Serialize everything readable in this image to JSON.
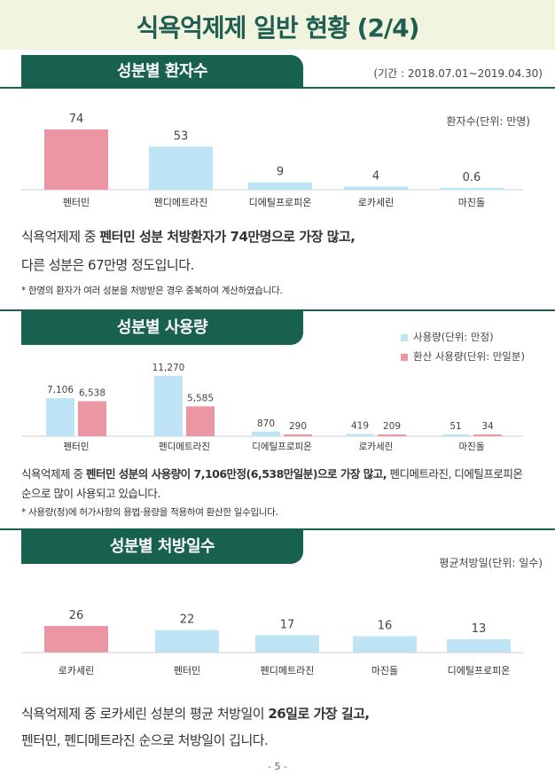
{
  "page": {
    "title": "식욕억제제 일반 현황 (2/4)",
    "period": "(기간 : 2018.07.01~2019.04.30)",
    "page_number": "- 5 -",
    "colors": {
      "brand": "#18614f",
      "highlight_bar": "#eb97a3",
      "normal_bar": "#bfe4f6",
      "top_band": "#f1f4df"
    }
  },
  "section1": {
    "heading": "성분별 환자수",
    "unit_label": "환자수(단위: 만명)",
    "text_line1_a": "식욕억제제 중 ",
    "text_line1_b": "펜터민 성분 처방환자가 74만명으로 가장 많고,",
    "text_line2": "다른 성분은 67만명 정도입니다.",
    "note": "* 한명의 환자가 여러 성분을 처방받은 경우 중복하여 계산하였습니다."
  },
  "section2": {
    "heading": "성분별 사용량",
    "legend": [
      {
        "label": "사용량(단위: 만정)",
        "color": "#bfe4f6"
      },
      {
        "label": "환산 사용량(단위: 만일분)",
        "color": "#eb97a3"
      }
    ],
    "text_line1_a": "식욕억제제 중 ",
    "text_line1_b": "펜터민 성분의 사용량이 7,106만정(6,538만일분)으로 가장 많고,",
    "text_line1_c": " 펜디메트라진, 디에틸프로피온",
    "text_line2": "순으로 많이 사용되고 있습니다.",
    "note": "* 사용량(정)에 허가사항의 용법·용량을 적용하여 환산한 일수입니다."
  },
  "section3": {
    "heading": "성분별 처방일수",
    "unit_label": "평균처방일(단위: 일수)",
    "text_line1_a": "식욕억제제 중 로카세린 성분의 평균 처방일이 ",
    "text_line1_b": "26일로 가장 길고,",
    "text_line2": "펜터민, 펜디메트라진 순으로 처방일이 깁니다."
  },
  "chart_data": [
    {
      "type": "bar",
      "title": "성분별 환자수",
      "ylabel": "환자수(단위: 만명)",
      "categories": [
        "펜터민",
        "펜디메트라진",
        "디에틸프로피온",
        "로카세린",
        "마진돌"
      ],
      "values": [
        74,
        53,
        9,
        4,
        0.6
      ],
      "data_labels": [
        "74",
        "53",
        "9",
        "4",
        "0.6"
      ],
      "highlight_index": 0
    },
    {
      "type": "bar",
      "title": "성분별 사용량",
      "categories": [
        "펜터민",
        "펜디메트라진",
        "디에틸프로피온",
        "로카세린",
        "마진돌"
      ],
      "series": [
        {
          "name": "사용량(단위: 만정)",
          "values": [
            7106,
            11270,
            870,
            419,
            51
          ],
          "data_labels": [
            "7,106",
            "11,270",
            "870",
            "419",
            "51"
          ],
          "color": "#bfe4f6"
        },
        {
          "name": "환산 사용량(단위: 만일분)",
          "values": [
            6538,
            5585,
            290,
            209,
            34
          ],
          "data_labels": [
            "6,538",
            "5,585",
            "290",
            "209",
            "34"
          ],
          "color": "#eb97a3"
        }
      ],
      "legend_position": "top-right"
    },
    {
      "type": "bar",
      "title": "성분별 처방일수",
      "ylabel": "평균처방일(단위: 일수)",
      "categories": [
        "로카세린",
        "펜터민",
        "펜디메트라진",
        "마진돌",
        "디에틸프로피온"
      ],
      "values": [
        26,
        22,
        17,
        16,
        13
      ],
      "data_labels": [
        "26",
        "22",
        "17",
        "16",
        "13"
      ],
      "highlight_index": 0
    }
  ]
}
